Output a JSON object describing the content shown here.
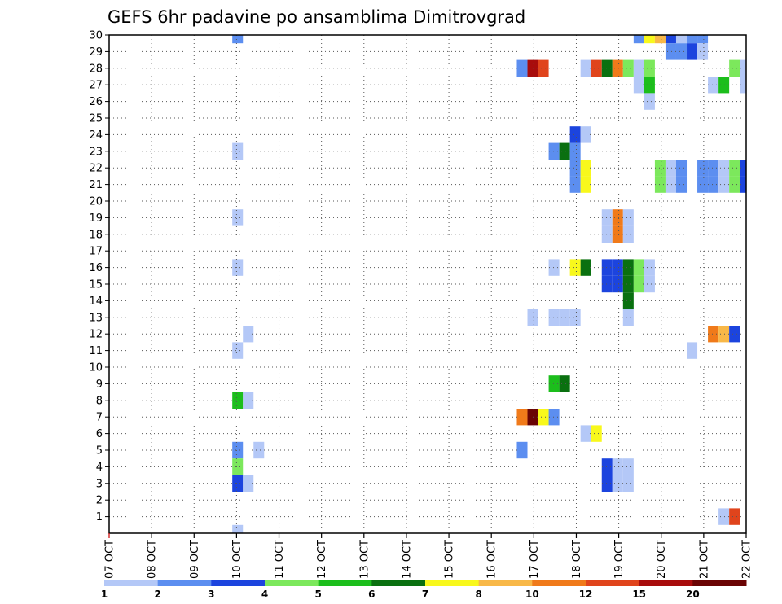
{
  "chart_data": {
    "type": "heatmap",
    "title": "GEFS 6hr padavine po ansamblima Dimitrovgrad",
    "xlabel": "",
    "ylabel": "",
    "x_ticks": [
      "07 OCT",
      "08 OCT",
      "09 OCT",
      "10 OCT",
      "11 OCT",
      "12 OCT",
      "13 OCT",
      "14 OCT",
      "15 OCT",
      "16 OCT",
      "17 OCT",
      "18 OCT",
      "19 OCT",
      "20 OCT",
      "21 OCT",
      "22 OCT"
    ],
    "x_range_days": [
      0,
      15
    ],
    "y_ticks": [
      1,
      2,
      3,
      4,
      5,
      6,
      7,
      8,
      9,
      10,
      11,
      12,
      13,
      14,
      15,
      16,
      17,
      18,
      19,
      20,
      21,
      22,
      23,
      24,
      25,
      26,
      27,
      28,
      29,
      30
    ],
    "y_range": [
      0,
      30
    ],
    "grid": true,
    "colorbar": {
      "labels": [
        "1",
        "2",
        "3",
        "4",
        "5",
        "6",
        "7",
        "8",
        "10",
        "12",
        "15",
        "20"
      ],
      "colors": [
        "#b4c8f7",
        "#5c8ef0",
        "#1c44de",
        "#7ce85c",
        "#1cbe1c",
        "#0a7010",
        "#f8f81c",
        "#f8b848",
        "#f07a1a",
        "#e0441c",
        "#a80c0c",
        "#6a0404"
      ]
    },
    "cells": [
      [
        2.9,
        30,
        2
      ],
      [
        2.9,
        0,
        1
      ],
      [
        2.9,
        23,
        1
      ],
      [
        2.9,
        19,
        1
      ],
      [
        2.9,
        16,
        1
      ],
      [
        3.15,
        12,
        1
      ],
      [
        2.9,
        11,
        1
      ],
      [
        2.9,
        8,
        5
      ],
      [
        3.15,
        8,
        1
      ],
      [
        2.9,
        5,
        2
      ],
      [
        3.4,
        5,
        1
      ],
      [
        2.9,
        4,
        4
      ],
      [
        2.9,
        3,
        3
      ],
      [
        3.15,
        3,
        1
      ],
      [
        9.6,
        28,
        2
      ],
      [
        9.85,
        28,
        11
      ],
      [
        10.1,
        28,
        10
      ],
      [
        9.6,
        7,
        9
      ],
      [
        9.85,
        7,
        12
      ],
      [
        10.1,
        7,
        7
      ],
      [
        10.35,
        7,
        2
      ],
      [
        9.6,
        5,
        2
      ],
      [
        9.85,
        13,
        1
      ],
      [
        10.35,
        16,
        1
      ],
      [
        10.35,
        23,
        2
      ],
      [
        10.6,
        23,
        6
      ],
      [
        10.85,
        23,
        2
      ],
      [
        10.35,
        9,
        5
      ],
      [
        10.6,
        9,
        6
      ],
      [
        10.35,
        13,
        1
      ],
      [
        10.6,
        13,
        1
      ],
      [
        10.85,
        13,
        1
      ],
      [
        10.85,
        24,
        3
      ],
      [
        11.1,
        24,
        1
      ],
      [
        10.85,
        22,
        2
      ],
      [
        11.1,
        22,
        7
      ],
      [
        10.85,
        21,
        2
      ],
      [
        11.1,
        21,
        7
      ],
      [
        10.85,
        16,
        7
      ],
      [
        11.1,
        16,
        6
      ],
      [
        11.1,
        6,
        1
      ],
      [
        11.35,
        6,
        7
      ],
      [
        11.1,
        28,
        1
      ],
      [
        11.35,
        28,
        10
      ],
      [
        11.6,
        28,
        6
      ],
      [
        11.85,
        28,
        9
      ],
      [
        12.1,
        28,
        4
      ],
      [
        12.35,
        28,
        1
      ],
      [
        12.6,
        28,
        4
      ],
      [
        12.35,
        27,
        1
      ],
      [
        12.6,
        27,
        5
      ],
      [
        12.6,
        26,
        1
      ],
      [
        11.6,
        18,
        1
      ],
      [
        11.85,
        18,
        9
      ],
      [
        12.1,
        18,
        1
      ],
      [
        11.6,
        19,
        1
      ],
      [
        11.85,
        19,
        9
      ],
      [
        12.1,
        19,
        1
      ],
      [
        11.6,
        16,
        3
      ],
      [
        11.85,
        16,
        3
      ],
      [
        12.1,
        16,
        6
      ],
      [
        12.35,
        16,
        4
      ],
      [
        12.6,
        16,
        1
      ],
      [
        11.6,
        15,
        3
      ],
      [
        11.85,
        15,
        3
      ],
      [
        12.1,
        15,
        6
      ],
      [
        12.35,
        15,
        4
      ],
      [
        12.6,
        15,
        1
      ],
      [
        12.1,
        14,
        6
      ],
      [
        12.1,
        13,
        1
      ],
      [
        11.6,
        4,
        3
      ],
      [
        11.85,
        4,
        1
      ],
      [
        12.1,
        4,
        1
      ],
      [
        11.6,
        3,
        3
      ],
      [
        11.85,
        3,
        1
      ],
      [
        12.1,
        3,
        1
      ],
      [
        12.35,
        30,
        2
      ],
      [
        12.6,
        30,
        7
      ],
      [
        12.85,
        30,
        8
      ],
      [
        13.1,
        30,
        3
      ],
      [
        13.35,
        30,
        1
      ],
      [
        13.6,
        30,
        2
      ],
      [
        13.85,
        30,
        2
      ],
      [
        13.1,
        29,
        2
      ],
      [
        13.35,
        29,
        2
      ],
      [
        13.6,
        29,
        3
      ],
      [
        13.85,
        29,
        1
      ],
      [
        12.85,
        22,
        4
      ],
      [
        13.1,
        22,
        1
      ],
      [
        13.35,
        22,
        2
      ],
      [
        12.85,
        21,
        4
      ],
      [
        13.1,
        21,
        1
      ],
      [
        13.35,
        21,
        2
      ],
      [
        13.85,
        22,
        2
      ],
      [
        14.1,
        22,
        2
      ],
      [
        14.35,
        22,
        1
      ],
      [
        14.6,
        22,
        4
      ],
      [
        14.85,
        22,
        3
      ],
      [
        13.85,
        21,
        2
      ],
      [
        14.1,
        21,
        2
      ],
      [
        14.35,
        21,
        1
      ],
      [
        14.6,
        21,
        4
      ],
      [
        14.85,
        21,
        3
      ],
      [
        14.6,
        28,
        4
      ],
      [
        14.85,
        28,
        1
      ],
      [
        14.1,
        27,
        1
      ],
      [
        14.35,
        27,
        5
      ],
      [
        14.85,
        27,
        1
      ],
      [
        13.6,
        11,
        1
      ],
      [
        14.1,
        12,
        9
      ],
      [
        14.35,
        12,
        8
      ],
      [
        14.6,
        12,
        3
      ],
      [
        14.35,
        1,
        1
      ],
      [
        14.6,
        1,
        10
      ]
    ]
  }
}
